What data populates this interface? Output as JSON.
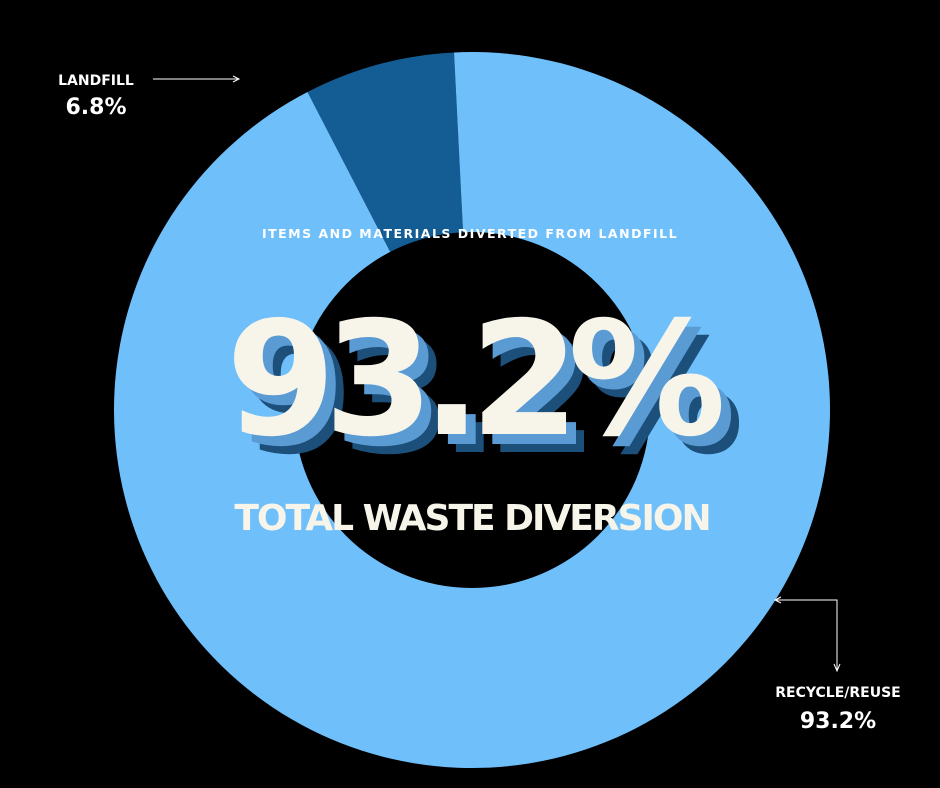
{
  "chart_data": {
    "type": "pie",
    "donut": true,
    "categories": [
      "LANDFILL",
      "RECYCLE/REUSE"
    ],
    "values": [
      6.8,
      93.2
    ],
    "labels": [
      "LANDFILL",
      "RECYCLE/REUSE"
    ],
    "value_labels": [
      "6.8%",
      "93.2%"
    ],
    "colors": [
      "#135d94",
      "#6fbffb"
    ],
    "title": "93.2%",
    "subtitle": "ITEMS AND MATERIALS DIVERTED FROM LANDFILL",
    "caption": "TOTAL WASTE DIVERSION"
  },
  "colors": {
    "background": "#000000",
    "big_text": "#f7f5ea",
    "shadow_light": "#5a9bd4",
    "shadow_dark": "#1c4f7a"
  }
}
